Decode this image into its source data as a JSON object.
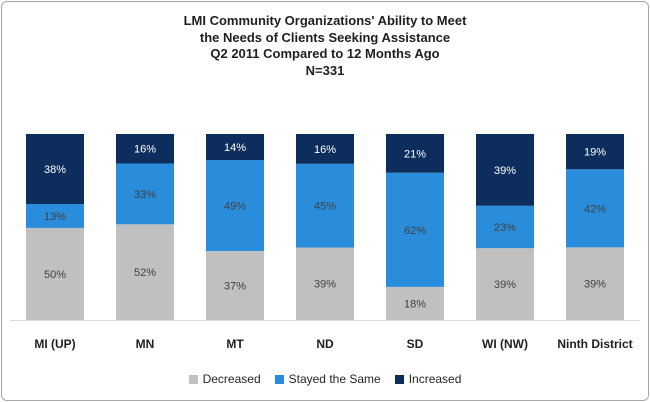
{
  "title": {
    "line1": "LMI Community Organizations'  Ability to Meet",
    "line2": "the Needs of Clients Seeking Assistance",
    "line3": "Q2 2011 Compared to 12 Months Ago",
    "line4": "N=331"
  },
  "colors": {
    "Decreased": "#c0c0c0",
    "Stayed the Same": "#2a8ddc",
    "Increased": "#0d2e5c"
  },
  "chart_data": {
    "type": "bar",
    "stacked": true,
    "percent_stacked": true,
    "categories": [
      "MI (UP)",
      "MN",
      "MT",
      "ND",
      "SD",
      "WI (NW)",
      "Ninth District"
    ],
    "series": [
      {
        "name": "Decreased",
        "values": [
          50,
          52,
          37,
          39,
          18,
          39,
          39
        ]
      },
      {
        "name": "Stayed the Same",
        "values": [
          13,
          33,
          49,
          45,
          62,
          23,
          42
        ]
      },
      {
        "name": "Increased",
        "values": [
          38,
          16,
          14,
          16,
          21,
          39,
          19
        ]
      }
    ],
    "value_suffix": "%",
    "ylim": [
      0,
      100
    ],
    "grid": false,
    "legend_position": "bottom"
  }
}
